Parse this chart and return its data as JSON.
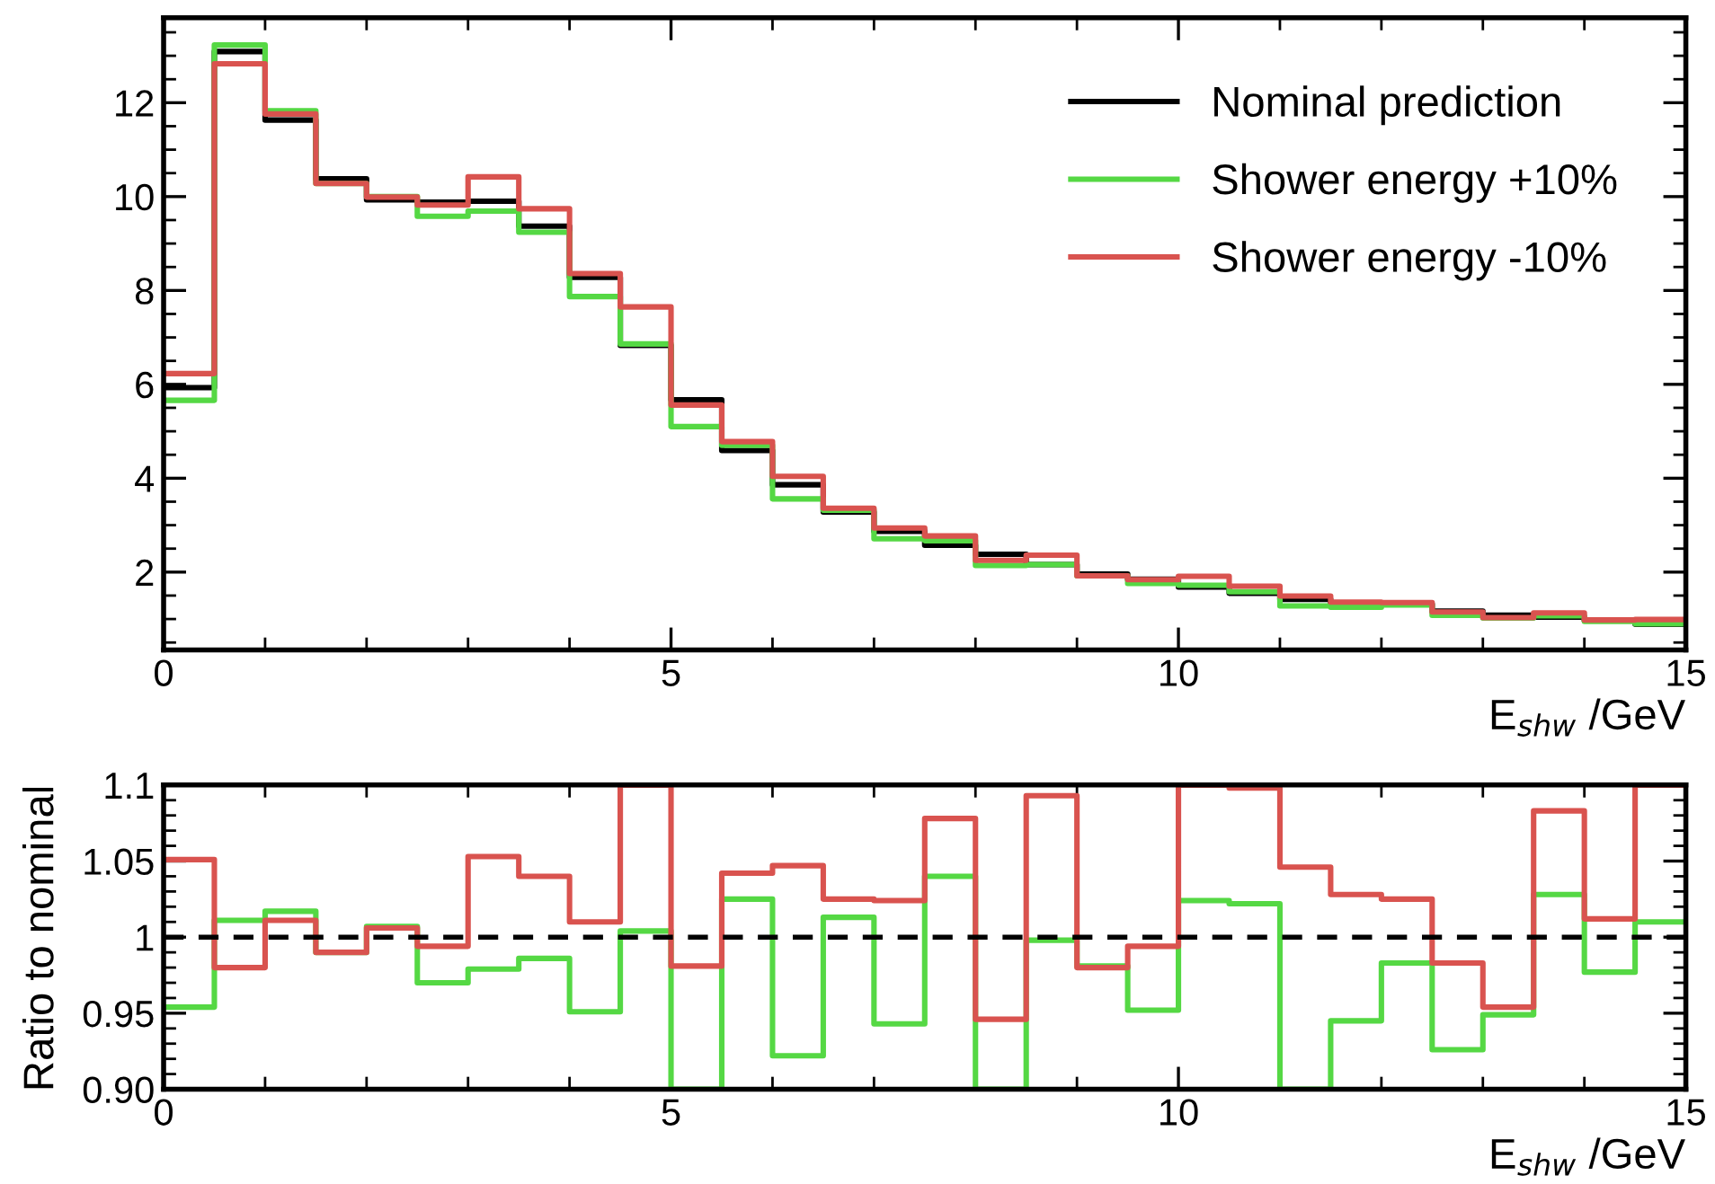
{
  "chart_data": [
    {
      "type": "histogram",
      "xlabel": "E$_{shw}$ /GeV",
      "bins": [
        0,
        0.5,
        1,
        1.5,
        2,
        2.5,
        3,
        3.5,
        4,
        4.5,
        5,
        5.5,
        6,
        6.5,
        7,
        7.5,
        8,
        8.5,
        9,
        9.5,
        10,
        10.5,
        11,
        11.5,
        12,
        12.5,
        13,
        13.5,
        14,
        14.5,
        15
      ],
      "series": [
        {
          "name": "Nominal prediction",
          "color": "#000000",
          "values": [
            5.93,
            13.09,
            11.63,
            10.38,
            9.93,
            9.88,
            9.9,
            9.37,
            8.28,
            6.83,
            5.67,
            4.59,
            3.86,
            3.28,
            2.87,
            2.57,
            2.38,
            2.16,
            1.96,
            1.85,
            1.68,
            1.55,
            1.42,
            1.32,
            1.32,
            1.17,
            1.08,
            1.04,
            0.97,
            0.89
          ]
        },
        {
          "name": "Shower energy +10%",
          "color": "#55d844",
          "values": [
            5.66,
            13.23,
            11.83,
            10.28,
            10.0,
            9.58,
            9.69,
            9.24,
            7.87,
            6.86,
            5.1,
            4.7,
            3.56,
            3.32,
            2.71,
            2.67,
            2.14,
            2.16,
            1.92,
            1.76,
            1.72,
            1.58,
            1.28,
            1.25,
            1.3,
            1.08,
            1.02,
            1.07,
            0.95,
            0.9
          ]
        },
        {
          "name": "Shower energy -10%",
          "color": "#d9534f",
          "values": [
            6.23,
            12.83,
            11.76,
            10.28,
            9.99,
            9.82,
            10.42,
            9.74,
            8.36,
            7.65,
            5.56,
            4.78,
            4.04,
            3.36,
            2.94,
            2.77,
            2.25,
            2.36,
            1.92,
            1.84,
            1.91,
            1.7,
            1.49,
            1.36,
            1.35,
            1.15,
            1.03,
            1.13,
            0.98,
            0.99
          ]
        }
      ],
      "xlim": [
        0,
        15
      ],
      "xticks": [
        0,
        5,
        10,
        15
      ],
      "ylim": [
        0.34,
        13.81
      ],
      "yticks": [
        2,
        4,
        6,
        8,
        10,
        12
      ],
      "legend": "top right",
      "grid": false
    },
    {
      "type": "histogram",
      "xlabel": "E$_{shw}$ /GeV",
      "ylabel": "Ratio to nominal",
      "bins": [
        0,
        0.5,
        1,
        1.5,
        2,
        2.5,
        3,
        3.5,
        4,
        4.5,
        5,
        5.5,
        6,
        6.5,
        7,
        7.5,
        8,
        8.5,
        9,
        9.5,
        10,
        10.5,
        11,
        11.5,
        12,
        12.5,
        13,
        13.5,
        14,
        14.5,
        15
      ],
      "series": [
        {
          "color": "#55d844",
          "values": [
            0.954,
            1.011,
            1.017,
            0.99,
            1.007,
            0.97,
            0.979,
            0.986,
            0.951,
            1.004,
            0.9,
            1.025,
            0.922,
            1.013,
            0.943,
            1.04,
            0.9,
            0.998,
            0.981,
            0.952,
            1.024,
            1.022,
            0.9,
            0.945,
            0.983,
            0.926,
            0.949,
            1.028,
            0.977,
            1.01
          ]
        },
        {
          "color": "#d9534f",
          "values": [
            1.051,
            0.98,
            1.011,
            0.99,
            1.006,
            0.994,
            1.053,
            1.04,
            1.01,
            1.1,
            0.981,
            1.042,
            1.047,
            1.025,
            1.024,
            1.078,
            0.946,
            1.093,
            0.98,
            0.994,
            1.1,
            1.098,
            1.046,
            1.028,
            1.025,
            0.983,
            0.954,
            1.083,
            1.012,
            1.1
          ]
        }
      ],
      "ref_lines": [
        {
          "axis": "y",
          "value": 1,
          "color": "#000000",
          "line_style": "dashed"
        }
      ],
      "xlim": [
        0,
        15
      ],
      "xticks": [
        0,
        5,
        10,
        15
      ],
      "ylim": [
        0.9,
        1.1
      ],
      "yticks": [
        {
          "value": 0.9,
          "label": "0.90"
        },
        0.95,
        1,
        1.05,
        1.1
      ],
      "grid": false
    }
  ]
}
